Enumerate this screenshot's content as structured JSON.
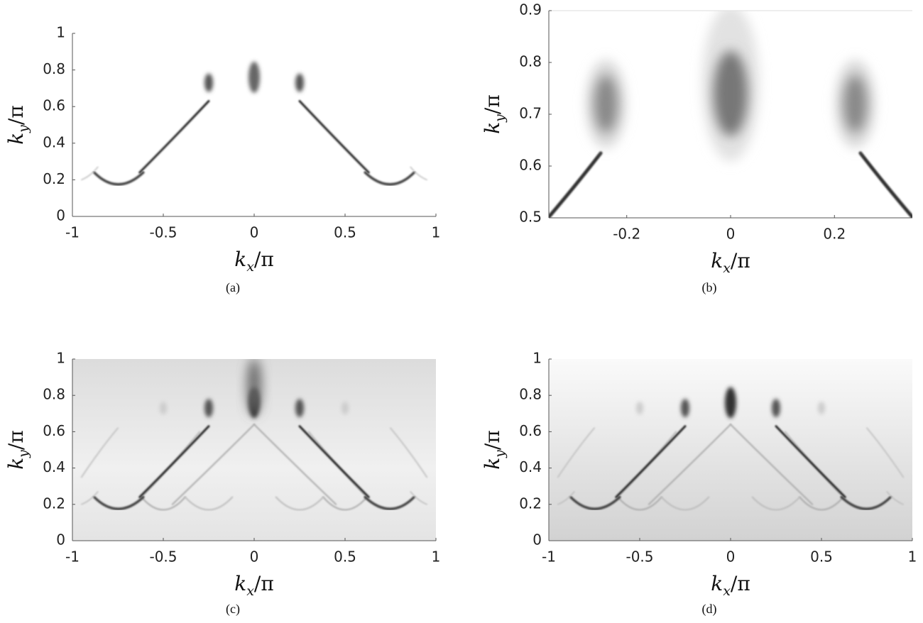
{
  "chart_data": [
    {
      "type": "heatmap",
      "caption": "(a)",
      "xlabel": [
        "k",
        "x",
        "/π"
      ],
      "ylabel": [
        "k",
        "y",
        "/π"
      ],
      "xlim": [
        -1,
        1
      ],
      "ylim": [
        0,
        1
      ],
      "xticks": [
        -1,
        -0.5,
        0,
        0.5,
        1
      ],
      "yticks": [
        0,
        0.2,
        0.4,
        0.6,
        0.8,
        1
      ]
    },
    {
      "type": "heatmap",
      "caption": "(b)",
      "xlabel": [
        "k",
        "x",
        "/π"
      ],
      "ylabel": [
        "k",
        "y",
        "/π"
      ],
      "xlim": [
        -0.35,
        0.35
      ],
      "ylim": [
        0.5,
        0.9
      ],
      "xticks": [
        -0.2,
        0,
        0.2
      ],
      "yticks": [
        0.5,
        0.6,
        0.7,
        0.8,
        0.9
      ]
    },
    {
      "type": "heatmap",
      "caption": "(c)",
      "xlabel": [
        "k",
        "x",
        "/π"
      ],
      "ylabel": [
        "k",
        "y",
        "/π"
      ],
      "xlim": [
        -1,
        1
      ],
      "ylim": [
        0,
        1
      ],
      "xticks": [
        -1,
        -0.5,
        0,
        0.5,
        1
      ],
      "yticks": [
        0,
        0.2,
        0.4,
        0.6,
        0.8,
        1
      ]
    },
    {
      "type": "heatmap",
      "caption": "(d)",
      "xlabel": [
        "k",
        "x",
        "/π"
      ],
      "ylabel": [
        "k",
        "y",
        "/π"
      ],
      "xlim": [
        -1,
        1
      ],
      "ylim": [
        0,
        1
      ],
      "xticks": [
        -1,
        -0.5,
        0,
        0.5,
        1
      ],
      "yticks": [
        0,
        0.2,
        0.4,
        0.6,
        0.8,
        1
      ]
    }
  ]
}
